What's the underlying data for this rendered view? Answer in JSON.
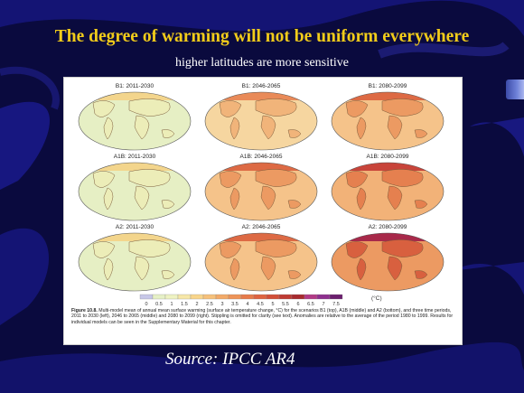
{
  "slide": {
    "title": "The degree of warming will not be uniform everywhere",
    "subtitle": "higher latitudes are more sensitive",
    "source": "Source: IPCC AR4"
  },
  "figure": {
    "panels": [
      {
        "label": "B1: 2011-2030",
        "level": 1
      },
      {
        "label": "B1: 2046-2065",
        "level": 2
      },
      {
        "label": "B1: 2080-2099",
        "level": 3
      },
      {
        "label": "A1B: 2011-2030",
        "level": 1
      },
      {
        "label": "A1B: 2046-2065",
        "level": 3
      },
      {
        "label": "A1B: 2080-2099",
        "level": 4
      },
      {
        "label": "A2: 2011-2030",
        "level": 1
      },
      {
        "label": "A2: 2046-2065",
        "level": 3
      },
      {
        "label": "A2: 2080-2099",
        "level": 5
      }
    ],
    "colorbar": {
      "ticks": [
        "0",
        "0.5",
        "1",
        "1.5",
        "2",
        "2.5",
        "3",
        "3.5",
        "4",
        "4.5",
        "5",
        "5.5",
        "6",
        "6.5",
        "7",
        "7.5"
      ],
      "unit": "(°C)",
      "colors": [
        "#c7c7e8",
        "#e6f0c6",
        "#eef2c2",
        "#f6e7a8",
        "#f8d58a",
        "#f6c17a",
        "#f3aa68",
        "#ee9458",
        "#e77b4a",
        "#de6340",
        "#d14e38",
        "#bf3b33",
        "#a82a2e",
        "#b23a86",
        "#8e2f8e",
        "#6b1f6e"
      ]
    },
    "caption_label": "Figure 10.8.",
    "caption_text": "Multi-model mean of annual mean surface warming (surface air temperature change, °C) for the scenarios B1 (top), A1B (middle) and A2 (bottom), and three time periods, 2011 to 2030 (left), 2046 to 2065 (middle) and 2080 to 2099 (right). Stippling is omitted for clarity (see text). Anomalies are relative to the average of the period 1980 to 1999. Results for individual models can be seen in the Supplementary Material for this chapter."
  }
}
